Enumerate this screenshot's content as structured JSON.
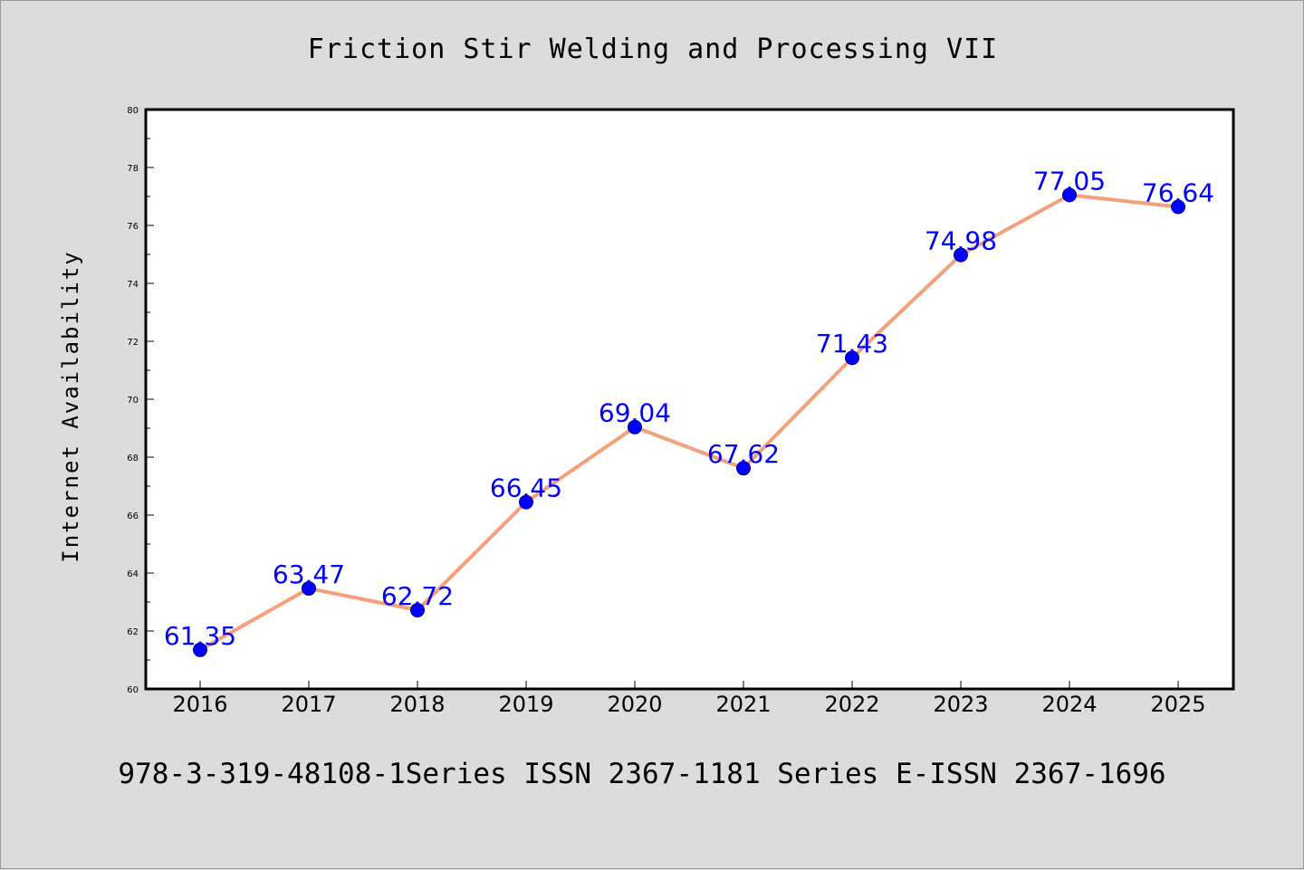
{
  "chart_data": {
    "type": "line",
    "title": "Friction Stir Welding and Processing VII",
    "footer": "978-3-319-48108-1Series ISSN 2367-1181 Series E-ISSN 2367-1696",
    "xlabel": "",
    "ylabel": "Internet Availability",
    "categories": [
      "2016",
      "2017",
      "2018",
      "2019",
      "2020",
      "2021",
      "2022",
      "2023",
      "2024",
      "2025"
    ],
    "series": [
      {
        "values": [
          61.35,
          63.47,
          62.72,
          66.45,
          69.04,
          67.62,
          71.43,
          74.98,
          77.05,
          76.64
        ],
        "labels": [
          "61.35",
          "63.47",
          "62.72",
          "66.45",
          "69.04",
          "67.62",
          "71.43",
          "74.98",
          "77.05",
          "76.64"
        ]
      }
    ],
    "ylim": [
      60,
      80
    ],
    "yticks": [
      60,
      62,
      64,
      66,
      68,
      70,
      72,
      74,
      76,
      78,
      80
    ],
    "ytick_labels": [
      "60",
      "62",
      "64",
      "66",
      "68",
      "70",
      "72",
      "74",
      "76",
      "78",
      "80"
    ],
    "grid": false,
    "legend": "none",
    "colors": {
      "line": "#f4a07a",
      "marker": "#0000ff",
      "marker_edge": "#00008b",
      "data_label": "#0000ff",
      "plot_background": "#ffffff",
      "figure_background": "#dcdcdc"
    }
  }
}
